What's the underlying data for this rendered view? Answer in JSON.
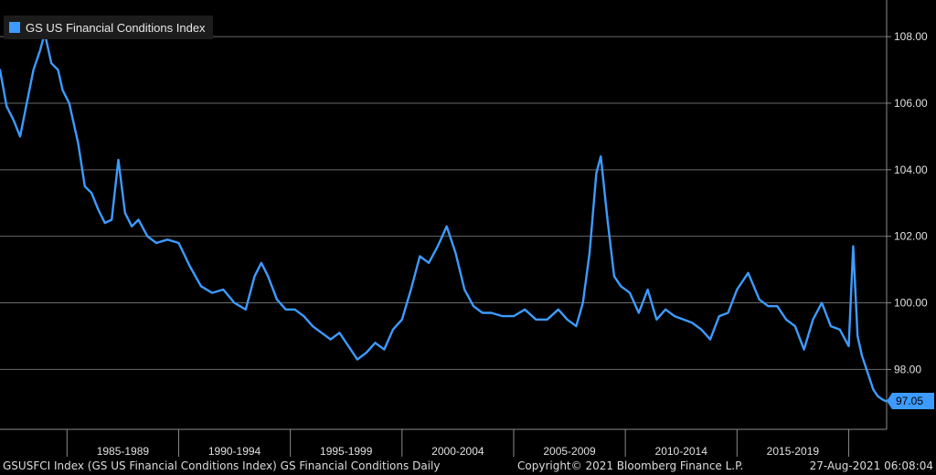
{
  "legend": {
    "label": "GS US Financial Conditions Index",
    "color": "#3d9bff"
  },
  "footer": {
    "left": "GSUSFCI Index (GS US Financial Conditions Index) GS Financial Conditions  Daily",
    "center": "Copyright© 2021 Bloomberg Finance L.P.",
    "right": "27-Aug-2021 06:08:04"
  },
  "chart_data": {
    "type": "line",
    "title": "",
    "xlabel": "",
    "ylabel": "",
    "x_range": [
      1982.0,
      2021.7
    ],
    "ylim": [
      96.2,
      109.1
    ],
    "y_ticks": [
      98,
      100,
      102,
      104,
      106,
      108
    ],
    "y_tick_labels": [
      "98.00",
      "100.00",
      "102.00",
      "104.00",
      "106.00",
      "108.00"
    ],
    "x_periods": [
      {
        "label": "1985-1989",
        "start": 1985.0,
        "end": 1990.0
      },
      {
        "label": "1990-1994",
        "start": 1990.0,
        "end": 1995.0
      },
      {
        "label": "1995-1999",
        "start": 1995.0,
        "end": 2000.0
      },
      {
        "label": "2000-2004",
        "start": 2000.0,
        "end": 2005.0
      },
      {
        "label": "2005-2009",
        "start": 2005.0,
        "end": 2010.0
      },
      {
        "label": "2010-2014",
        "start": 2010.0,
        "end": 2015.0
      },
      {
        "label": "2015-2019",
        "start": 2015.0,
        "end": 2020.0
      }
    ],
    "grid": true,
    "legend_position": "top-left",
    "last_value": 97.05,
    "last_value_label": "97.05",
    "series": [
      {
        "name": "GS US Financial Conditions Index",
        "color": "#3d9bff",
        "x": [
          1982.0,
          1982.3,
          1982.6,
          1982.9,
          1983.2,
          1983.5,
          1983.8,
          1984.0,
          1984.3,
          1984.6,
          1984.8,
          1985.1,
          1985.5,
          1985.8,
          1986.1,
          1986.4,
          1986.7,
          1987.0,
          1987.3,
          1987.6,
          1987.9,
          1988.2,
          1988.6,
          1989.0,
          1989.5,
          1990.0,
          1990.5,
          1991.0,
          1991.5,
          1992.0,
          1992.5,
          1993.0,
          1993.4,
          1993.7,
          1994.0,
          1994.4,
          1994.8,
          1995.2,
          1995.6,
          1996.0,
          1996.4,
          1996.8,
          1997.2,
          1997.6,
          1998.0,
          1998.4,
          1998.8,
          1999.2,
          1999.6,
          2000.0,
          2000.4,
          2000.8,
          2001.2,
          2001.6,
          2002.0,
          2002.4,
          2002.8,
          2003.2,
          2003.6,
          2004.0,
          2004.5,
          2005.0,
          2005.5,
          2006.0,
          2006.5,
          2007.0,
          2007.4,
          2007.8,
          2008.1,
          2008.4,
          2008.7,
          2008.9,
          2009.2,
          2009.5,
          2009.8,
          2010.2,
          2010.6,
          2011.0,
          2011.4,
          2011.8,
          2012.2,
          2012.6,
          2013.0,
          2013.4,
          2013.8,
          2014.2,
          2014.6,
          2015.0,
          2015.5,
          2016.0,
          2016.4,
          2016.8,
          2017.2,
          2017.6,
          2018.0,
          2018.4,
          2018.8,
          2019.2,
          2019.6,
          2020.0,
          2020.2,
          2020.4,
          2020.6,
          2020.9,
          2021.1,
          2021.3,
          2021.5,
          2021.65
        ],
        "values": [
          107.0,
          105.9,
          105.5,
          105.0,
          106.0,
          107.0,
          107.6,
          108.1,
          107.2,
          107.0,
          106.4,
          106.0,
          104.8,
          103.5,
          103.3,
          102.8,
          102.4,
          102.5,
          104.3,
          102.7,
          102.3,
          102.5,
          102.0,
          101.8,
          101.9,
          101.8,
          101.1,
          100.5,
          100.3,
          100.4,
          100.0,
          99.8,
          100.8,
          101.2,
          100.8,
          100.1,
          99.8,
          99.8,
          99.6,
          99.3,
          99.1,
          98.9,
          99.1,
          98.7,
          98.3,
          98.5,
          98.8,
          98.6,
          99.2,
          99.5,
          100.4,
          101.4,
          101.2,
          101.7,
          102.3,
          101.5,
          100.4,
          99.9,
          99.7,
          99.7,
          99.6,
          99.6,
          99.8,
          99.5,
          99.5,
          99.8,
          99.5,
          99.3,
          100.0,
          101.5,
          103.9,
          104.4,
          102.5,
          100.8,
          100.5,
          100.3,
          99.7,
          100.4,
          99.5,
          99.8,
          99.6,
          99.5,
          99.4,
          99.2,
          98.9,
          99.6,
          99.7,
          100.4,
          100.9,
          100.1,
          99.9,
          99.9,
          99.5,
          99.3,
          98.6,
          99.5,
          100.0,
          99.3,
          99.2,
          98.7,
          101.7,
          99.0,
          98.4,
          97.8,
          97.4,
          97.2,
          97.1,
          97.05
        ]
      }
    ]
  }
}
